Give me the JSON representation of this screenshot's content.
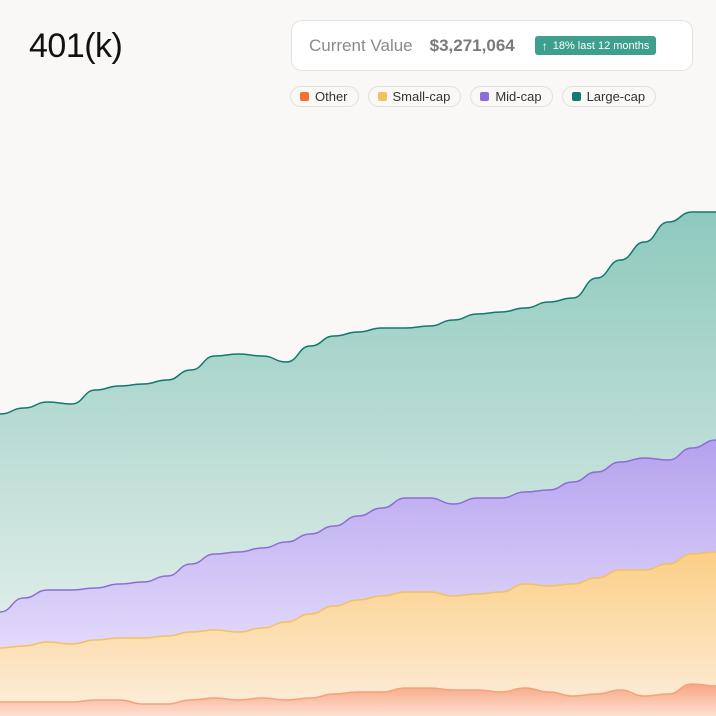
{
  "header": {
    "title": "401(k)",
    "current_value_label": "Current Value",
    "current_value": "$3,271,064",
    "change_text": "18% last 12 months",
    "change_icon": "arrow-up-icon"
  },
  "legend": [
    {
      "label": "Other",
      "color": "#f0722e"
    },
    {
      "label": "Small-cap",
      "color": "#f4c15d"
    },
    {
      "label": "Mid-cap",
      "color": "#8b6fd6"
    },
    {
      "label": "Large-cap",
      "color": "#0f7a6e"
    }
  ],
  "chart_data": {
    "type": "area",
    "stacked": true,
    "x": [
      0,
      1,
      2,
      3,
      4,
      5,
      6,
      7,
      8,
      9,
      10,
      11,
      12,
      13,
      14,
      15,
      16,
      17,
      18,
      19,
      20,
      21,
      22,
      23,
      24,
      25,
      26,
      27,
      28,
      29,
      30
    ],
    "series": [
      {
        "name": "Other",
        "color": "#f4a27a",
        "values": [
          7,
          7,
          7,
          7,
          8,
          8,
          6,
          6,
          8,
          9,
          8,
          9,
          8,
          9,
          11,
          12,
          12,
          14,
          14,
          13,
          13,
          12,
          14,
          12,
          10,
          11,
          13,
          10,
          11,
          16,
          15
        ]
      },
      {
        "name": "Small-cap",
        "color": "#f4c15d",
        "values": [
          27,
          28,
          30,
          29,
          30,
          31,
          33,
          34,
          34,
          34,
          34,
          35,
          39,
          42,
          44,
          46,
          48,
          48,
          48,
          47,
          48,
          50,
          52,
          53,
          56,
          58,
          60,
          63,
          65,
          65,
          67
        ]
      },
      {
        "name": "Mid-cap",
        "color": "#8b6fd6",
        "values": [
          18,
          24,
          26,
          27,
          26,
          27,
          28,
          30,
          34,
          38,
          40,
          40,
          40,
          40,
          40,
          42,
          44,
          47,
          47,
          46,
          48,
          47,
          46,
          48,
          51,
          53,
          54,
          56,
          52,
          53,
          56
        ]
      },
      {
        "name": "Large-cap",
        "color": "#0f7a6e",
        "values": [
          99,
          95,
          94,
          93,
          99,
          99,
          99,
          98,
          97,
          99,
          99,
          96,
          90,
          94,
          95,
          92,
          90,
          85,
          86,
          92,
          92,
          93,
          92,
          94,
          92,
          97,
          101,
          108,
          119,
          118,
          114
        ]
      }
    ]
  }
}
